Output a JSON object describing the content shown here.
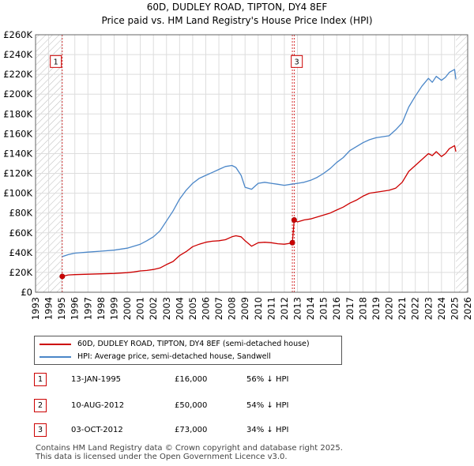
{
  "title": {
    "line1": "60D, DUDLEY ROAD, TIPTON, DY4 8EF",
    "line2": "Price paid vs. HM Land Registry's House Price Index (HPI)"
  },
  "legend": {
    "property_label": "60D, DUDLEY ROAD, TIPTON, DY4 8EF (semi-detached house)",
    "hpi_label": "HPI: Average price, semi-detached house, Sandwell"
  },
  "colors": {
    "property_line": "#cc0000",
    "hpi_line": "#4a86c8",
    "grid": "#dddddd",
    "hatch": "#bbbbbb",
    "marker": "#cc0000"
  },
  "sales": [
    {
      "num": "1",
      "date": "13-JAN-1995",
      "price": "£16,000",
      "hpi": "56% ↓ HPI"
    },
    {
      "num": "2",
      "date": "10-AUG-2012",
      "price": "£50,000",
      "hpi": "54% ↓ HPI"
    },
    {
      "num": "3",
      "date": "03-OCT-2012",
      "price": "£73,000",
      "hpi": "34% ↓ HPI"
    }
  ],
  "footer": {
    "line1": "Contains HM Land Registry data © Crown copyright and database right 2025.",
    "line2": "This data is licensed under the Open Government Licence v3.0."
  },
  "chart_data": {
    "type": "line",
    "title": "Price paid vs. HM Land Registry's House Price Index (HPI)",
    "xlim": [
      1993,
      2026
    ],
    "ylim": [
      0,
      260000
    ],
    "x_ticks": [
      "1993",
      "1994",
      "1995",
      "1996",
      "1997",
      "1998",
      "1999",
      "2000",
      "2001",
      "2002",
      "2003",
      "2004",
      "2005",
      "2006",
      "2007",
      "2008",
      "2009",
      "2010",
      "2011",
      "2012",
      "2013",
      "2014",
      "2015",
      "2016",
      "2017",
      "2018",
      "2019",
      "2020",
      "2021",
      "2022",
      "2023",
      "2024",
      "2025",
      "2026"
    ],
    "y_ticks": [
      {
        "value": 0,
        "label": "£0"
      },
      {
        "value": 20000,
        "label": "£20K"
      },
      {
        "value": 40000,
        "label": "£40K"
      },
      {
        "value": 60000,
        "label": "£60K"
      },
      {
        "value": 80000,
        "label": "£80K"
      },
      {
        "value": 100000,
        "label": "£100K"
      },
      {
        "value": 120000,
        "label": "£120K"
      },
      {
        "value": 140000,
        "label": "£140K"
      },
      {
        "value": 160000,
        "label": "£160K"
      },
      {
        "value": 180000,
        "label": "£180K"
      },
      {
        "value": 200000,
        "label": "£200K"
      },
      {
        "value": 220000,
        "label": "£220K"
      },
      {
        "value": 240000,
        "label": "£240K"
      },
      {
        "value": 260000,
        "label": "£260K"
      }
    ],
    "hatched_ranges": [
      [
        1993,
        1995.04
      ],
      [
        2025.1,
        2026
      ]
    ],
    "sale_lines": [
      1995.04,
      2012.61,
      2012.75
    ],
    "sale_points": [
      {
        "num": "1",
        "x": 1995.04,
        "y": 16000
      },
      {
        "num": "2",
        "x": 2012.61,
        "y": 50000
      },
      {
        "num": "3",
        "x": 2012.75,
        "y": 73000
      }
    ],
    "label_boxes": [
      {
        "num": "1",
        "x": 1994.55,
        "y": 233000
      },
      {
        "num": "3",
        "x": 2012.95,
        "y": 233000
      }
    ],
    "series": [
      {
        "name": "60D, DUDLEY ROAD, TIPTON, DY4 8EF (semi-detached house)",
        "x": [
          1995.04,
          1995.5,
          1996,
          1997,
          1998,
          1999,
          2000,
          2000.5,
          2001,
          2001.5,
          2002,
          2002.5,
          2003,
          2003.5,
          2004,
          2004.5,
          2005,
          2005.5,
          2006,
          2006.5,
          2007,
          2007.5,
          2008,
          2008.3,
          2008.7,
          2009,
          2009.5,
          2010,
          2010.5,
          2011,
          2011.5,
          2012,
          2012.5,
          2012.61,
          2012.75,
          2013,
          2013.5,
          2014,
          2014.5,
          2015,
          2015.5,
          2016,
          2016.5,
          2017,
          2017.5,
          2018,
          2018.5,
          2019,
          2019.5,
          2020,
          2020.5,
          2021,
          2021.5,
          2022,
          2022.5,
          2023,
          2023.3,
          2023.6,
          2024,
          2024.3,
          2024.6,
          2025,
          2025.1
        ],
        "values": [
          16000,
          17500,
          17800,
          18200,
          18600,
          19000,
          19800,
          20500,
          21500,
          22000,
          23000,
          24500,
          28000,
          31000,
          37000,
          41000,
          46000,
          48500,
          50500,
          51500,
          52000,
          53000,
          56000,
          57000,
          56000,
          52000,
          46500,
          50000,
          50500,
          50000,
          49000,
          48500,
          49500,
          50000,
          73000,
          71000,
          73000,
          74000,
          76000,
          78000,
          80000,
          83000,
          86000,
          90000,
          93000,
          97000,
          100000,
          101000,
          102000,
          103000,
          105000,
          111000,
          122000,
          128000,
          134000,
          140000,
          138000,
          142000,
          137000,
          140000,
          145000,
          148000,
          142000
        ]
      },
      {
        "name": "HPI: Average price, semi-detached house, Sandwell",
        "x": [
          1995.04,
          1995.5,
          1996,
          1997,
          1998,
          1999,
          2000,
          2000.5,
          2001,
          2001.5,
          2002,
          2002.5,
          2003,
          2003.5,
          2004,
          2004.5,
          2005,
          2005.5,
          2006,
          2006.5,
          2007,
          2007.5,
          2008,
          2008.3,
          2008.7,
          2009,
          2009.5,
          2010,
          2010.5,
          2011,
          2011.5,
          2012,
          2012.5,
          2013,
          2013.5,
          2014,
          2014.5,
          2015,
          2015.5,
          2016,
          2016.5,
          2017,
          2017.5,
          2018,
          2018.5,
          2019,
          2019.5,
          2020,
          2020.5,
          2021,
          2021.5,
          2022,
          2022.5,
          2023,
          2023.3,
          2023.6,
          2024,
          2024.3,
          2024.6,
          2025,
          2025.1
        ],
        "values": [
          36000,
          38000,
          39500,
          40500,
          41500,
          42500,
          44500,
          46500,
          48500,
          52000,
          56000,
          62000,
          72000,
          82000,
          94000,
          103000,
          110000,
          115000,
          118000,
          121000,
          124000,
          127000,
          128000,
          126000,
          118000,
          106000,
          104000,
          110000,
          111000,
          110000,
          109000,
          108000,
          109000,
          110000,
          111000,
          113000,
          116000,
          120000,
          125000,
          131000,
          136000,
          143000,
          147000,
          151000,
          154000,
          156000,
          157000,
          158000,
          164000,
          171000,
          187000,
          198000,
          208000,
          216000,
          212000,
          218000,
          214000,
          217000,
          222000,
          225000,
          215000
        ]
      }
    ]
  }
}
